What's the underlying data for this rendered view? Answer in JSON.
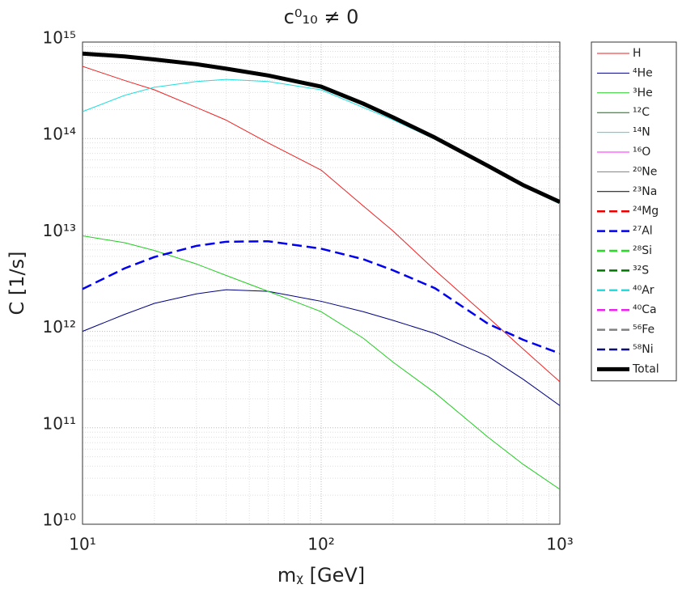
{
  "chart_data": {
    "type": "line",
    "title": "c⁰₁₀ ≠ 0",
    "x_label": "mᵪ [GeV]",
    "y_label": "C [1/s]",
    "xscale": "log",
    "yscale": "log",
    "grid": true,
    "minor_grid": true,
    "legend": "outside-right",
    "xlim": [
      10,
      1000
    ],
    "xticks": [
      {
        "value": 10,
        "label": "10¹"
      },
      {
        "value": 100,
        "label": "10²"
      },
      {
        "value": 1000,
        "label": "10³"
      }
    ],
    "ylim": [
      10000000000.0,
      1000000000000000.0
    ],
    "yticks": [
      {
        "value": 10000000000.0,
        "label": "10¹⁰"
      },
      {
        "value": 100000000000.0,
        "label": "10¹¹"
      },
      {
        "value": 1000000000000.0,
        "label": "10¹²"
      },
      {
        "value": 10000000000000.0,
        "label": "10¹³"
      },
      {
        "value": 100000000000000.0,
        "label": "10¹⁴"
      },
      {
        "value": 1000000000000000.0,
        "label": "10¹⁵"
      }
    ],
    "x": [
      10,
      15,
      20,
      30,
      40,
      60,
      100,
      150,
      200,
      300,
      500,
      700,
      1000
    ],
    "series": [
      {
        "name": "H",
        "color": "#ee2222",
        "linestyle": "solid",
        "linewidth": 1,
        "values": [
          560000000000000.0,
          400000000000000.0,
          320000000000000.0,
          210000000000000.0,
          155000000000000.0,
          90000000000000.0,
          47000000000000.0,
          20000000000000.0,
          11000000000000.0,
          4300000000000.0,
          1400000000000.0,
          660000000000.0,
          300000000000.0
        ]
      },
      {
        "name": "⁴He",
        "color": "#000080",
        "linestyle": "solid",
        "linewidth": 1,
        "values": [
          1000000000000.0,
          1500000000000.0,
          1950000000000.0,
          2450000000000.0,
          2700000000000.0,
          2600000000000.0,
          2050000000000.0,
          1600000000000.0,
          1300000000000.0,
          950000000000.0,
          550000000000.0,
          320000000000.0,
          170000000000.0
        ]
      },
      {
        "name": "³He",
        "color": "#22cc22",
        "linestyle": "solid",
        "linewidth": 1,
        "values": [
          9800000000000.0,
          8300000000000.0,
          6900000000000.0,
          5000000000000.0,
          3800000000000.0,
          2600000000000.0,
          1600000000000.0,
          850000000000.0,
          480000000000.0,
          230000000000.0,
          80000000000.0,
          42000000000.0,
          23000000000.0
        ]
      },
      {
        "name": "¹²C",
        "color": "#007700",
        "linestyle": "solid",
        "linewidth": 1,
        "values": [
          null,
          null,
          null,
          null,
          null,
          null,
          null,
          null,
          null,
          null,
          null,
          null,
          null
        ]
      },
      {
        "name": "¹⁴N",
        "color": "#22dddd",
        "linestyle": "solid",
        "linewidth": 1,
        "values": [
          190000000000000.0,
          280000000000000.0,
          340000000000000.0,
          390000000000000.0,
          410000000000000.0,
          390000000000000.0,
          320000000000000.0,
          210000000000000.0,
          156000000000000.0,
          98000000000000.0,
          50000000000000.0,
          32000000000000.0,
          21000000000000.0
        ]
      },
      {
        "name": "¹⁶O",
        "color": "#ff22ff",
        "linestyle": "solid",
        "linewidth": 1,
        "values": [
          null,
          null,
          null,
          null,
          null,
          null,
          null,
          null,
          null,
          null,
          null,
          null,
          null
        ]
      },
      {
        "name": "²⁰Ne",
        "color": "#808080",
        "linestyle": "solid",
        "linewidth": 1,
        "values": [
          null,
          null,
          null,
          null,
          null,
          null,
          null,
          null,
          null,
          null,
          null,
          null,
          null
        ]
      },
      {
        "name": "²³Na",
        "color": "#000000",
        "linestyle": "solid",
        "linewidth": 1,
        "values": [
          null,
          null,
          null,
          null,
          null,
          null,
          null,
          null,
          null,
          null,
          null,
          null,
          null
        ]
      },
      {
        "name": "²⁴Mg",
        "color": "#ee0000",
        "linestyle": "dashed",
        "linewidth": 2.5,
        "values": [
          null,
          null,
          null,
          null,
          null,
          null,
          null,
          null,
          null,
          null,
          null,
          null,
          null
        ]
      },
      {
        "name": "²⁷Al",
        "color": "#0000ee",
        "linestyle": "dashed",
        "linewidth": 2.5,
        "values": [
          2750000000000.0,
          4500000000000.0,
          5900000000000.0,
          7700000000000.0,
          8500000000000.0,
          8600000000000.0,
          7200000000000.0,
          5600000000000.0,
          4300000000000.0,
          2800000000000.0,
          1200000000000.0,
          820000000000.0,
          590000000000.0
        ]
      },
      {
        "name": "²⁸Si",
        "color": "#22dd22",
        "linestyle": "dashed",
        "linewidth": 2.5,
        "values": [
          null,
          null,
          null,
          null,
          null,
          null,
          null,
          null,
          null,
          null,
          null,
          null,
          null
        ]
      },
      {
        "name": "³²S",
        "color": "#007700",
        "linestyle": "dashed",
        "linewidth": 2.5,
        "values": [
          null,
          null,
          null,
          null,
          null,
          null,
          null,
          null,
          null,
          null,
          null,
          null,
          null
        ]
      },
      {
        "name": "⁴⁰Ar",
        "color": "#22dddd",
        "linestyle": "dashed",
        "linewidth": 2.5,
        "values": [
          null,
          null,
          null,
          null,
          null,
          null,
          null,
          null,
          null,
          null,
          null,
          null,
          null
        ]
      },
      {
        "name": "⁴⁰Ca",
        "color": "#ee22ee",
        "linestyle": "dashed",
        "linewidth": 2.5,
        "values": [
          null,
          null,
          null,
          null,
          null,
          null,
          null,
          null,
          null,
          null,
          null,
          null,
          null
        ]
      },
      {
        "name": "⁵⁶Fe",
        "color": "#808080",
        "linestyle": "dashed",
        "linewidth": 2.5,
        "values": [
          null,
          null,
          null,
          null,
          null,
          null,
          null,
          null,
          null,
          null,
          null,
          null,
          null
        ]
      },
      {
        "name": "⁵⁸Ni",
        "color": "#000080",
        "linestyle": "dashed",
        "linewidth": 2.5,
        "values": [
          null,
          null,
          null,
          null,
          null,
          null,
          null,
          null,
          null,
          null,
          null,
          null,
          null
        ]
      },
      {
        "name": "Total",
        "color": "#000000",
        "linestyle": "solid",
        "linewidth": 5,
        "values": [
          760000000000000.0,
          710000000000000.0,
          660000000000000.0,
          590000000000000.0,
          530000000000000.0,
          450000000000000.0,
          345000000000000.0,
          230000000000000.0,
          166000000000000.0,
          102000000000000.0,
          52000000000000.0,
          33000000000000.0,
          22000000000000.0
        ]
      }
    ]
  }
}
